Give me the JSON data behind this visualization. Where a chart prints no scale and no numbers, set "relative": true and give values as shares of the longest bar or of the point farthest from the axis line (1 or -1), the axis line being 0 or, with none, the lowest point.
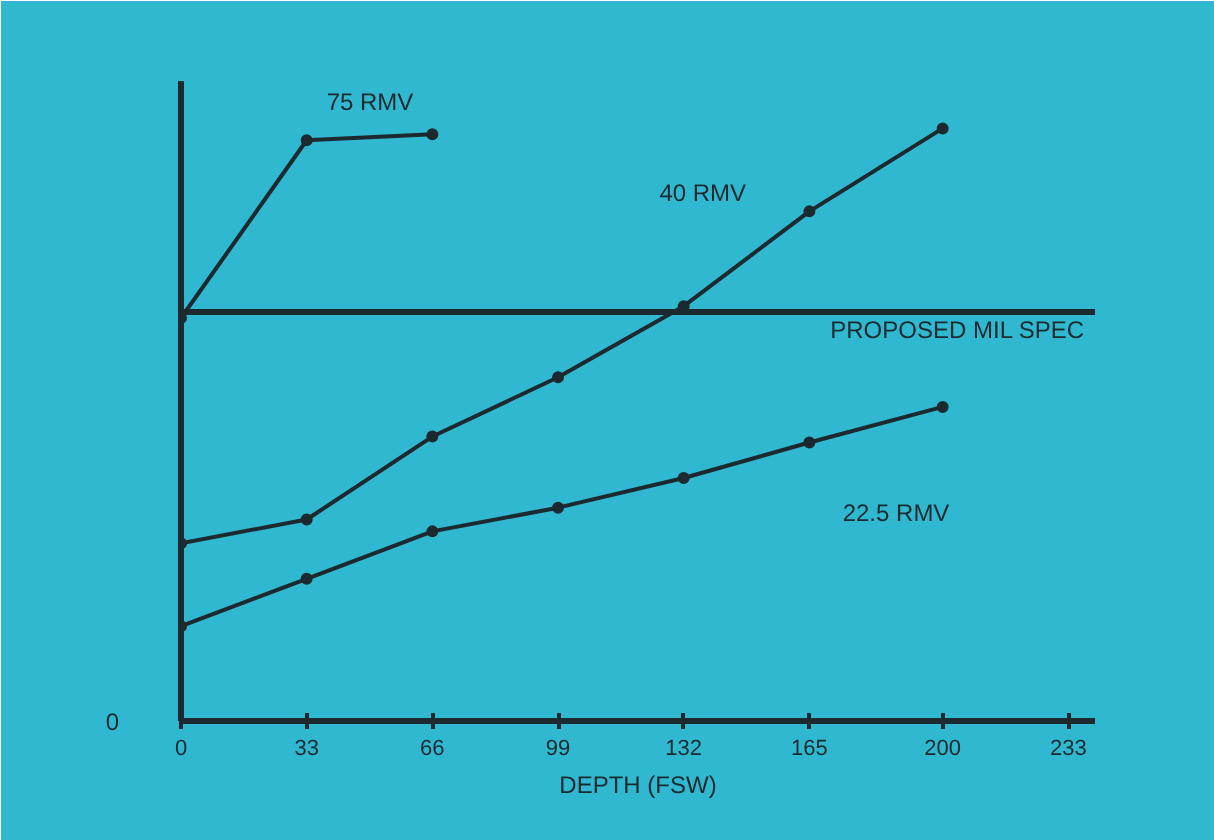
{
  "chart_data": {
    "type": "line",
    "relative": true,
    "xlabel": "DEPTH (FSW)",
    "x": [
      0,
      33,
      66,
      99,
      132,
      165,
      200
    ],
    "xlim": [
      0,
      240
    ],
    "xticks": [
      0,
      33,
      66,
      99,
      132,
      165,
      200,
      233
    ],
    "marker": "circle",
    "line_style": "solid",
    "grid": false,
    "series": [
      {
        "name": "75 RMV",
        "color": "#1c2a30",
        "x": [
          0,
          33,
          66
        ],
        "values": [
          0.68,
          0.98,
          0.99
        ]
      },
      {
        "name": "40 RMV",
        "color": "#1c2a30",
        "values": [
          0.3,
          0.34,
          0.48,
          0.58,
          0.7,
          0.86,
          1.0
        ]
      },
      {
        "name": "22.5 RMV",
        "color": "#1c2a30",
        "values": [
          0.16,
          0.24,
          0.32,
          0.36,
          0.41,
          0.47,
          0.53
        ]
      }
    ],
    "ref_lines": [
      {
        "axis": "y",
        "value": 0.69,
        "label": "PROPOSED MIL SPEC",
        "color": "#1c2a30",
        "line_style": "solid"
      }
    ],
    "annotations": [
      "0"
    ]
  }
}
